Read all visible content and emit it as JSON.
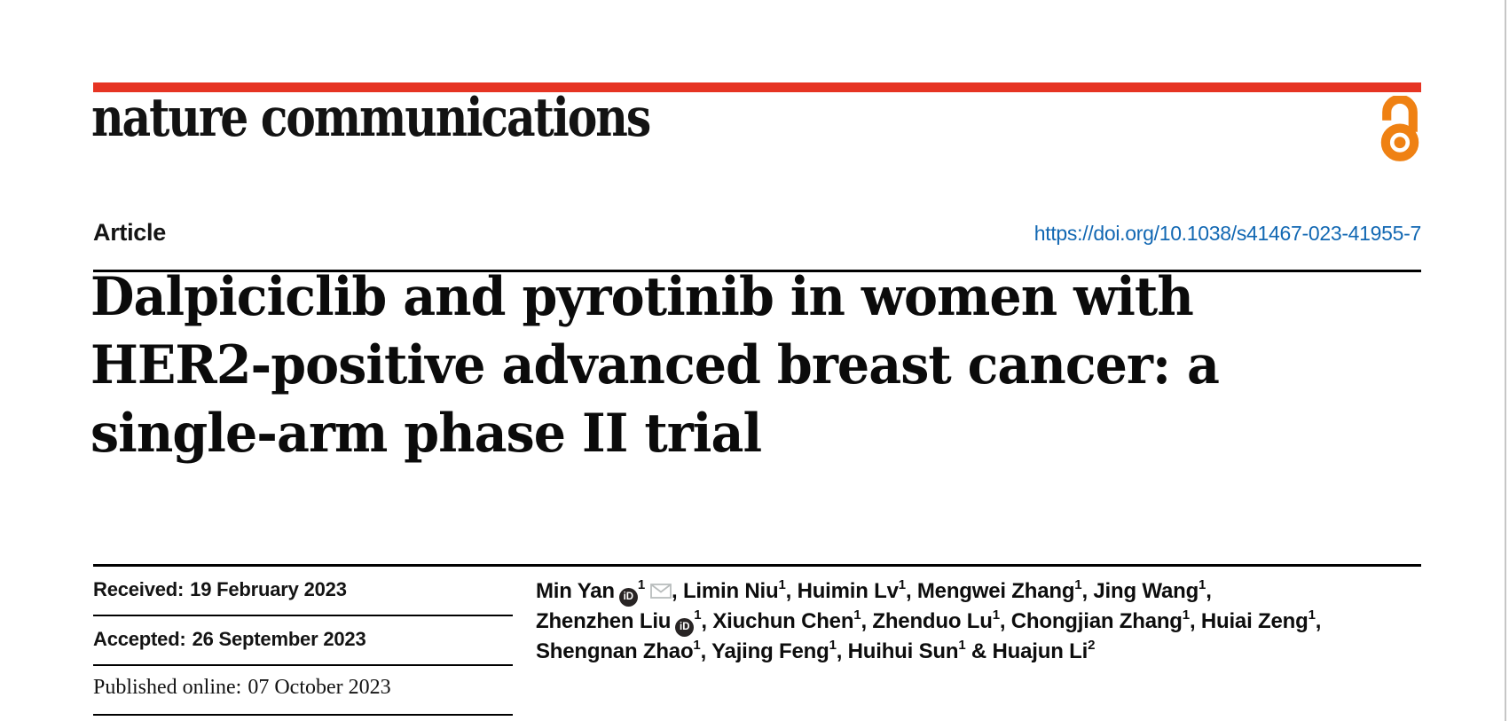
{
  "journal": {
    "wordmark": "nature communications"
  },
  "article": {
    "type_label": "Article",
    "doi": "https://doi.org/10.1038/s41467-023-41955-7",
    "title_lines": [
      "Dalpiciclib and pyrotinib in women with",
      "HER2-positive advanced breast cancer: a",
      "single-arm phase II trial"
    ]
  },
  "dates": [
    {
      "label": "Received:",
      "value": "19 February 2023"
    },
    {
      "label": "Accepted:",
      "value": "26 September 2023"
    },
    {
      "label": "Published online:",
      "value": "07 October 2023"
    }
  ],
  "authors": {
    "orcid_icon_text": "iD",
    "lines": [
      [
        {
          "name": "Min Yan",
          "orcid": true,
          "sup": "1",
          "email": true,
          "sep": ", "
        },
        {
          "name": "Limin Niu",
          "sup": "1",
          "sep": ", "
        },
        {
          "name": "Huimin Lv",
          "sup": "1",
          "sep": ", "
        },
        {
          "name": "Mengwei Zhang",
          "sup": "1",
          "sep": ", "
        },
        {
          "name": "Jing Wang",
          "sup": "1",
          "sep": ","
        }
      ],
      [
        {
          "name": "Zhenzhen Liu",
          "orcid": true,
          "sup": "1",
          "sep": ", "
        },
        {
          "name": "Xiuchun Chen",
          "sup": "1",
          "sep": ", "
        },
        {
          "name": "Zhenduo Lu",
          "sup": "1",
          "sep": ", "
        },
        {
          "name": "Chongjian Zhang",
          "sup": "1",
          "sep": ", "
        },
        {
          "name": "Huiai Zeng",
          "sup": "1",
          "sep": ","
        }
      ],
      [
        {
          "name": "Shengnan Zhao",
          "sup": "1",
          "sep": ", "
        },
        {
          "name": "Yajing Feng",
          "sup": "1",
          "sep": ", "
        },
        {
          "name": "Huihui Sun",
          "sup": "1",
          "sep": " & "
        },
        {
          "name": "Huajun Li",
          "sup": "2",
          "sep": ""
        }
      ]
    ]
  },
  "colors": {
    "red_bar": "#e63423",
    "doi_link": "#1268b3",
    "open_access": "#ef8113",
    "ink": "#141414",
    "envelope": "#b9bdbd",
    "orcid_bg": "#282424",
    "page_edge": "#c6c6c6"
  }
}
